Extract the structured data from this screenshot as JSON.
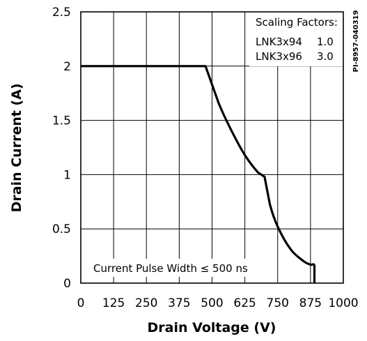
{
  "chart_data": {
    "type": "line",
    "xlabel": "Drain Voltage (V)",
    "ylabel": "Drain Current (A)",
    "xlim": [
      0,
      1000
    ],
    "ylim": [
      0,
      2.5
    ],
    "x_ticks": [
      "0",
      "125",
      "250",
      "375",
      "500",
      "625",
      "750",
      "875",
      "1000"
    ],
    "y_ticks": [
      "0",
      "0.5",
      "1",
      "1.5",
      "2",
      "2.5"
    ],
    "grid": true,
    "series": [
      {
        "x": [
          0,
          475,
          525,
          575,
          625,
          675,
          700,
          720,
          750,
          800,
          850,
          875,
          890,
          890
        ],
        "y": [
          2.0,
          2.0,
          1.66,
          1.4,
          1.18,
          1.02,
          0.98,
          0.73,
          0.52,
          0.31,
          0.2,
          0.17,
          0.16,
          0
        ],
        "color": "#000000"
      }
    ],
    "annotations": {
      "pulse_width": "Current Pulse Width ≤ 500 ns",
      "scaling_title": "Scaling Factors:",
      "scaling_rows": [
        {
          "part": "LNK3x94",
          "factor": "1.0"
        },
        {
          "part": "LNK3x96",
          "factor": "3.0"
        }
      ],
      "reference": "PI-8957-040319"
    }
  }
}
